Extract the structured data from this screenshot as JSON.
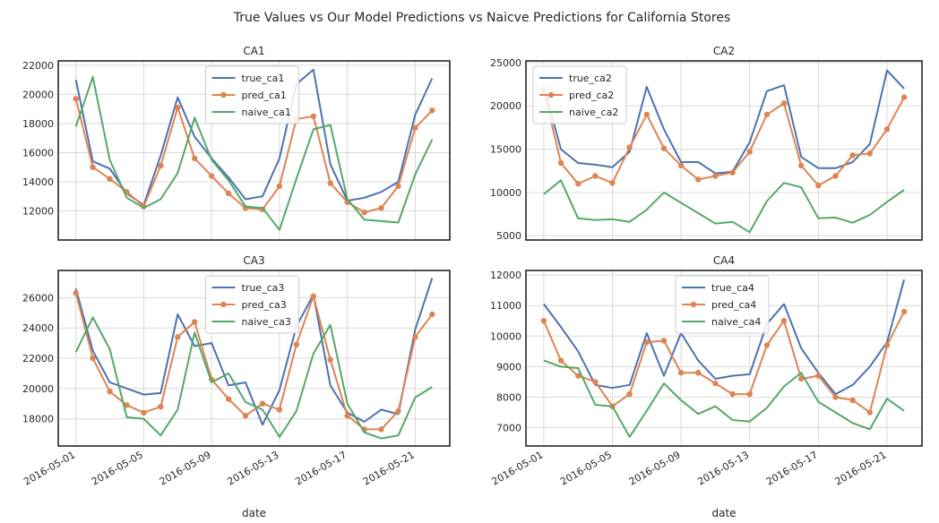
{
  "title": "True Values vs Our Model Predictions vs Naicve Predictions for California Stores",
  "colors": {
    "true": "#4c72b0",
    "pred": "#dd8452",
    "naive": "#55a868",
    "grid": "#d9d9d9",
    "frame": "#262626"
  },
  "chart_data": [
    {
      "type": "line",
      "title": "CA1",
      "xlabel": "",
      "ylim": [
        10000,
        22300
      ],
      "yticks": [
        12000,
        14000,
        16000,
        18000,
        20000,
        22000
      ],
      "xticks": [
        "2016-05-01",
        "2016-05-05",
        "2016-05-09",
        "2016-05-13",
        "2016-05-17",
        "2016-05-21"
      ],
      "show_xticklabels": false,
      "legend": "top-center",
      "x": [
        "2016-05-01",
        "2016-05-02",
        "2016-05-03",
        "2016-05-04",
        "2016-05-05",
        "2016-05-06",
        "2016-05-07",
        "2016-05-08",
        "2016-05-09",
        "2016-05-10",
        "2016-05-11",
        "2016-05-12",
        "2016-05-13",
        "2016-05-14",
        "2016-05-15",
        "2016-05-16",
        "2016-05-17",
        "2016-05-18",
        "2016-05-19",
        "2016-05-20",
        "2016-05-21",
        "2016-05-22"
      ],
      "series": [
        {
          "name": "true_ca1",
          "color_key": "true",
          "marker": false,
          "values": [
            21000,
            15400,
            14900,
            13200,
            12400,
            15800,
            19800,
            17100,
            15600,
            14300,
            12800,
            13000,
            15600,
            20700,
            21700,
            15200,
            12700,
            12900,
            13300,
            14000,
            18600,
            21100
          ]
        },
        {
          "name": "pred_ca1",
          "color_key": "pred",
          "marker": true,
          "values": [
            19700,
            15000,
            14200,
            13300,
            12300,
            15100,
            19100,
            15600,
            14400,
            13200,
            12200,
            12100,
            13700,
            18300,
            18500,
            13900,
            12600,
            11900,
            12200,
            13700,
            17700,
            18900
          ]
        },
        {
          "name": "naive_ca1",
          "color_key": "naive",
          "marker": false,
          "values": [
            17800,
            21200,
            15500,
            12900,
            12200,
            12800,
            14600,
            18400,
            15500,
            14100,
            12300,
            12200,
            10700,
            14200,
            17600,
            17900,
            12800,
            11400,
            11300,
            11200,
            14500,
            16900
          ]
        }
      ]
    },
    {
      "type": "line",
      "title": "CA2",
      "xlabel": "",
      "ylim": [
        4500,
        25200
      ],
      "yticks": [
        5000,
        10000,
        15000,
        20000,
        25000
      ],
      "xticks": [
        "2016-05-01",
        "2016-05-05",
        "2016-05-09",
        "2016-05-13",
        "2016-05-17",
        "2016-05-21"
      ],
      "show_xticklabels": false,
      "legend": "top-left",
      "x": [
        "2016-05-01",
        "2016-05-02",
        "2016-05-03",
        "2016-05-04",
        "2016-05-05",
        "2016-05-06",
        "2016-05-07",
        "2016-05-08",
        "2016-05-09",
        "2016-05-10",
        "2016-05-11",
        "2016-05-12",
        "2016-05-13",
        "2016-05-14",
        "2016-05-15",
        "2016-05-16",
        "2016-05-17",
        "2016-05-18",
        "2016-05-19",
        "2016-05-20",
        "2016-05-21",
        "2016-05-22"
      ],
      "series": [
        {
          "name": "true_ca2",
          "color_key": "true",
          "marker": false,
          "values": [
            22300,
            15000,
            13400,
            13200,
            12900,
            14700,
            22200,
            17300,
            13500,
            13500,
            12200,
            12400,
            15800,
            21700,
            22400,
            14100,
            12800,
            12800,
            13500,
            15600,
            24100,
            22000
          ]
        },
        {
          "name": "pred_ca2",
          "color_key": "pred",
          "marker": true,
          "values": [
            21800,
            13400,
            11000,
            11900,
            11100,
            15200,
            19000,
            15100,
            13100,
            11500,
            11900,
            12300,
            14700,
            19000,
            20300,
            13100,
            10800,
            11900,
            14300,
            14500,
            17300,
            21000
          ]
        },
        {
          "name": "naive_ca2",
          "color_key": "naive",
          "marker": false,
          "values": [
            9800,
            11400,
            7000,
            6800,
            6900,
            6600,
            8000,
            10000,
            8800,
            7600,
            6400,
            6600,
            5400,
            9000,
            11100,
            10600,
            7000,
            7100,
            6500,
            7400,
            8900,
            10300
          ]
        }
      ]
    },
    {
      "type": "line",
      "title": "CA3",
      "xlabel": "date",
      "ylim": [
        16200,
        27800
      ],
      "yticks": [
        18000,
        20000,
        22000,
        24000,
        26000
      ],
      "xticks": [
        "2016-05-01",
        "2016-05-05",
        "2016-05-09",
        "2016-05-13",
        "2016-05-17",
        "2016-05-21"
      ],
      "show_xticklabels": true,
      "legend": "top-center",
      "x": [
        "2016-05-01",
        "2016-05-02",
        "2016-05-03",
        "2016-05-04",
        "2016-05-05",
        "2016-05-06",
        "2016-05-07",
        "2016-05-08",
        "2016-05-09",
        "2016-05-10",
        "2016-05-11",
        "2016-05-12",
        "2016-05-13",
        "2016-05-14",
        "2016-05-15",
        "2016-05-16",
        "2016-05-17",
        "2016-05-18",
        "2016-05-19",
        "2016-05-20",
        "2016-05-21",
        "2016-05-22"
      ],
      "series": [
        {
          "name": "true_ca3",
          "color_key": "true",
          "marker": false,
          "values": [
            26600,
            22500,
            20400,
            20000,
            19600,
            19700,
            24900,
            22800,
            23000,
            20200,
            20400,
            17600,
            19900,
            24100,
            26200,
            20200,
            18400,
            17800,
            18600,
            18300,
            23900,
            27300
          ]
        },
        {
          "name": "pred_ca3",
          "color_key": "pred",
          "marker": true,
          "values": [
            26300,
            22000,
            19800,
            18900,
            18400,
            18800,
            23400,
            24400,
            20600,
            19300,
            18200,
            19000,
            18600,
            22900,
            26100,
            21900,
            18200,
            17300,
            17300,
            18500,
            23400,
            24900
          ]
        },
        {
          "name": "naive_ca3",
          "color_key": "naive",
          "marker": false,
          "values": [
            22400,
            24700,
            22600,
            18100,
            18000,
            16900,
            18600,
            23700,
            20400,
            21000,
            19100,
            18600,
            16800,
            18500,
            22300,
            24200,
            19000,
            17100,
            16700,
            16900,
            19400,
            20100
          ]
        }
      ]
    },
    {
      "type": "line",
      "title": "CA4",
      "xlabel": "date",
      "ylim": [
        6400,
        12150
      ],
      "yticks": [
        7000,
        8000,
        9000,
        10000,
        11000,
        12000
      ],
      "xticks": [
        "2016-05-01",
        "2016-05-05",
        "2016-05-09",
        "2016-05-13",
        "2016-05-17",
        "2016-05-21"
      ],
      "show_xticklabels": true,
      "legend": "top-center",
      "x": [
        "2016-05-01",
        "2016-05-02",
        "2016-05-03",
        "2016-05-04",
        "2016-05-05",
        "2016-05-06",
        "2016-05-07",
        "2016-05-08",
        "2016-05-09",
        "2016-05-10",
        "2016-05-11",
        "2016-05-12",
        "2016-05-13",
        "2016-05-14",
        "2016-05-15",
        "2016-05-16",
        "2016-05-17",
        "2016-05-18",
        "2016-05-19",
        "2016-05-20",
        "2016-05-21",
        "2016-05-22"
      ],
      "series": [
        {
          "name": "true_ca4",
          "color_key": "true",
          "marker": false,
          "values": [
            11050,
            10300,
            9500,
            8400,
            8300,
            8400,
            10100,
            8700,
            10100,
            9200,
            8600,
            8700,
            8750,
            10400,
            11050,
            9600,
            8800,
            8100,
            8400,
            9000,
            9800,
            11850
          ]
        },
        {
          "name": "pred_ca4",
          "color_key": "pred",
          "marker": true,
          "values": [
            10500,
            9200,
            8700,
            8500,
            7700,
            8100,
            9800,
            9850,
            8800,
            8800,
            8450,
            8100,
            8100,
            9700,
            10500,
            8600,
            8700,
            8000,
            7900,
            7500,
            9700,
            10800
          ]
        },
        {
          "name": "naive_ca4",
          "color_key": "naive",
          "marker": false,
          "values": [
            9200,
            9000,
            8950,
            7750,
            7700,
            6700,
            7550,
            8450,
            7900,
            7450,
            7700,
            7250,
            7200,
            7650,
            8350,
            8800,
            7850,
            7500,
            7150,
            6950,
            7950,
            7550
          ]
        }
      ]
    }
  ]
}
